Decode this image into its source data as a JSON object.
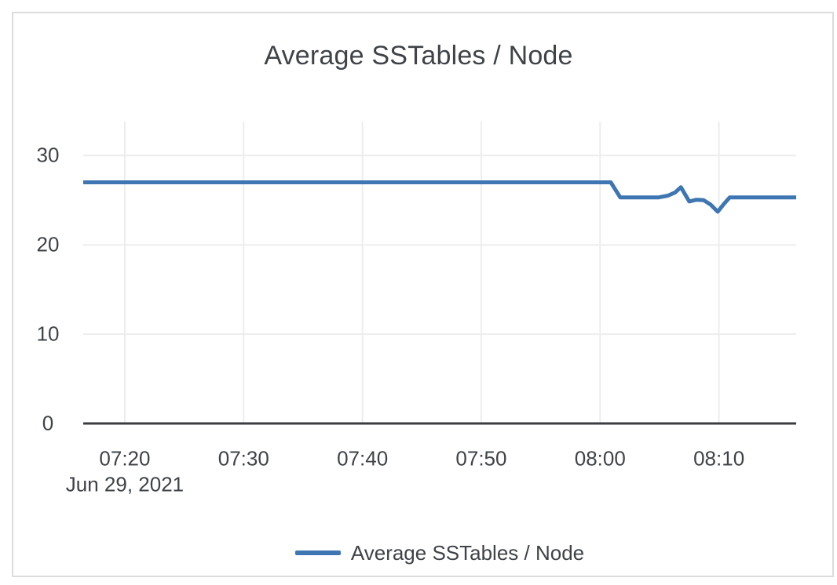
{
  "card": {
    "title": "Average SSTables / Node"
  },
  "legend": {
    "label": "Average SSTables / Node"
  },
  "colors": {
    "series_line": "#3d76b2",
    "text": "#3f4347",
    "grid": "#ededed",
    "axis": "#3a3d40",
    "card_border": "#dcdcdc",
    "background": "#ffffff"
  },
  "chart_data": {
    "type": "line",
    "title": "Average SSTables / Node",
    "legend_position": "bottom",
    "grid": true,
    "x_axis": {
      "date_label": "Jun 29, 2021",
      "ticks": [
        "07:20",
        "07:30",
        "07:40",
        "07:50",
        "08:00",
        "08:10"
      ],
      "range": [
        "07:16:30",
        "08:16:30"
      ]
    },
    "y_axis": {
      "ticks": [
        0,
        10,
        20,
        30
      ],
      "range": [
        0,
        33.8
      ]
    },
    "series": [
      {
        "name": "Average SSTables / Node",
        "color": "#3d76b2",
        "points": [
          [
            "07:16:30",
            27
          ],
          [
            "08:00:54",
            27
          ],
          [
            "08:01:42",
            25.3
          ],
          [
            "08:04:54",
            25.3
          ],
          [
            "08:05:42",
            25.5
          ],
          [
            "08:06:18",
            25.85
          ],
          [
            "08:06:48",
            26.45
          ],
          [
            "08:07:30",
            24.85
          ],
          [
            "08:08:06",
            25.05
          ],
          [
            "08:08:42",
            25.0
          ],
          [
            "08:09:18",
            24.5
          ],
          [
            "08:09:54",
            23.7
          ],
          [
            "08:10:24",
            24.55
          ],
          [
            "08:10:54",
            25.3
          ],
          [
            "08:16:30",
            25.3
          ]
        ]
      }
    ]
  }
}
